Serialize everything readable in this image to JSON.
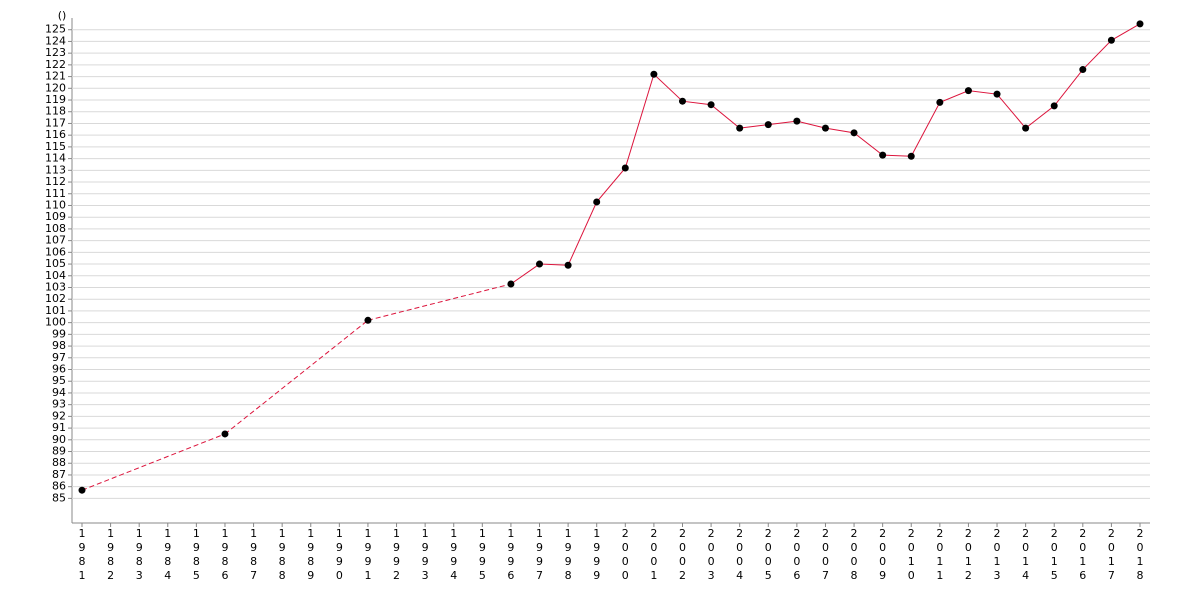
{
  "chart_data": {
    "type": "line",
    "y_label": "()",
    "categories": [
      "1981",
      "1982",
      "1983",
      "1984",
      "1985",
      "1986",
      "1987",
      "1988",
      "1989",
      "1990",
      "1991",
      "1992",
      "1993",
      "1994",
      "1995",
      "1996",
      "1997",
      "1998",
      "1999",
      "2000",
      "2001",
      "2002",
      "2003",
      "2004",
      "2005",
      "2006",
      "2007",
      "2008",
      "2009",
      "2010",
      "2011",
      "2012",
      "2013",
      "2014",
      "2015",
      "2016",
      "2017",
      "2018"
    ],
    "series": [
      {
        "color": "#dc143c",
        "values": [
          85.7,
          null,
          null,
          null,
          null,
          90.5,
          null,
          null,
          null,
          null,
          100.2,
          null,
          null,
          null,
          null,
          103.3,
          105.0,
          104.9,
          110.3,
          113.2,
          121.2,
          118.9,
          118.6,
          116.6,
          116.9,
          117.2,
          116.6,
          116.2,
          114.3,
          114.2,
          118.8,
          119.8,
          119.5,
          116.6,
          118.5,
          121.6,
          124.1,
          125.5
        ]
      }
    ],
    "ylim": [
      82.9,
      126
    ],
    "yticks": [
      85,
      86,
      87,
      88,
      89,
      90,
      91,
      92,
      93,
      94,
      95,
      96,
      97,
      98,
      99,
      100,
      101,
      102,
      103,
      104,
      105,
      106,
      107,
      108,
      109,
      110,
      111,
      112,
      113,
      114,
      115,
      116,
      117,
      118,
      119,
      120,
      121,
      122,
      123,
      124,
      125
    ],
    "grid": true
  }
}
